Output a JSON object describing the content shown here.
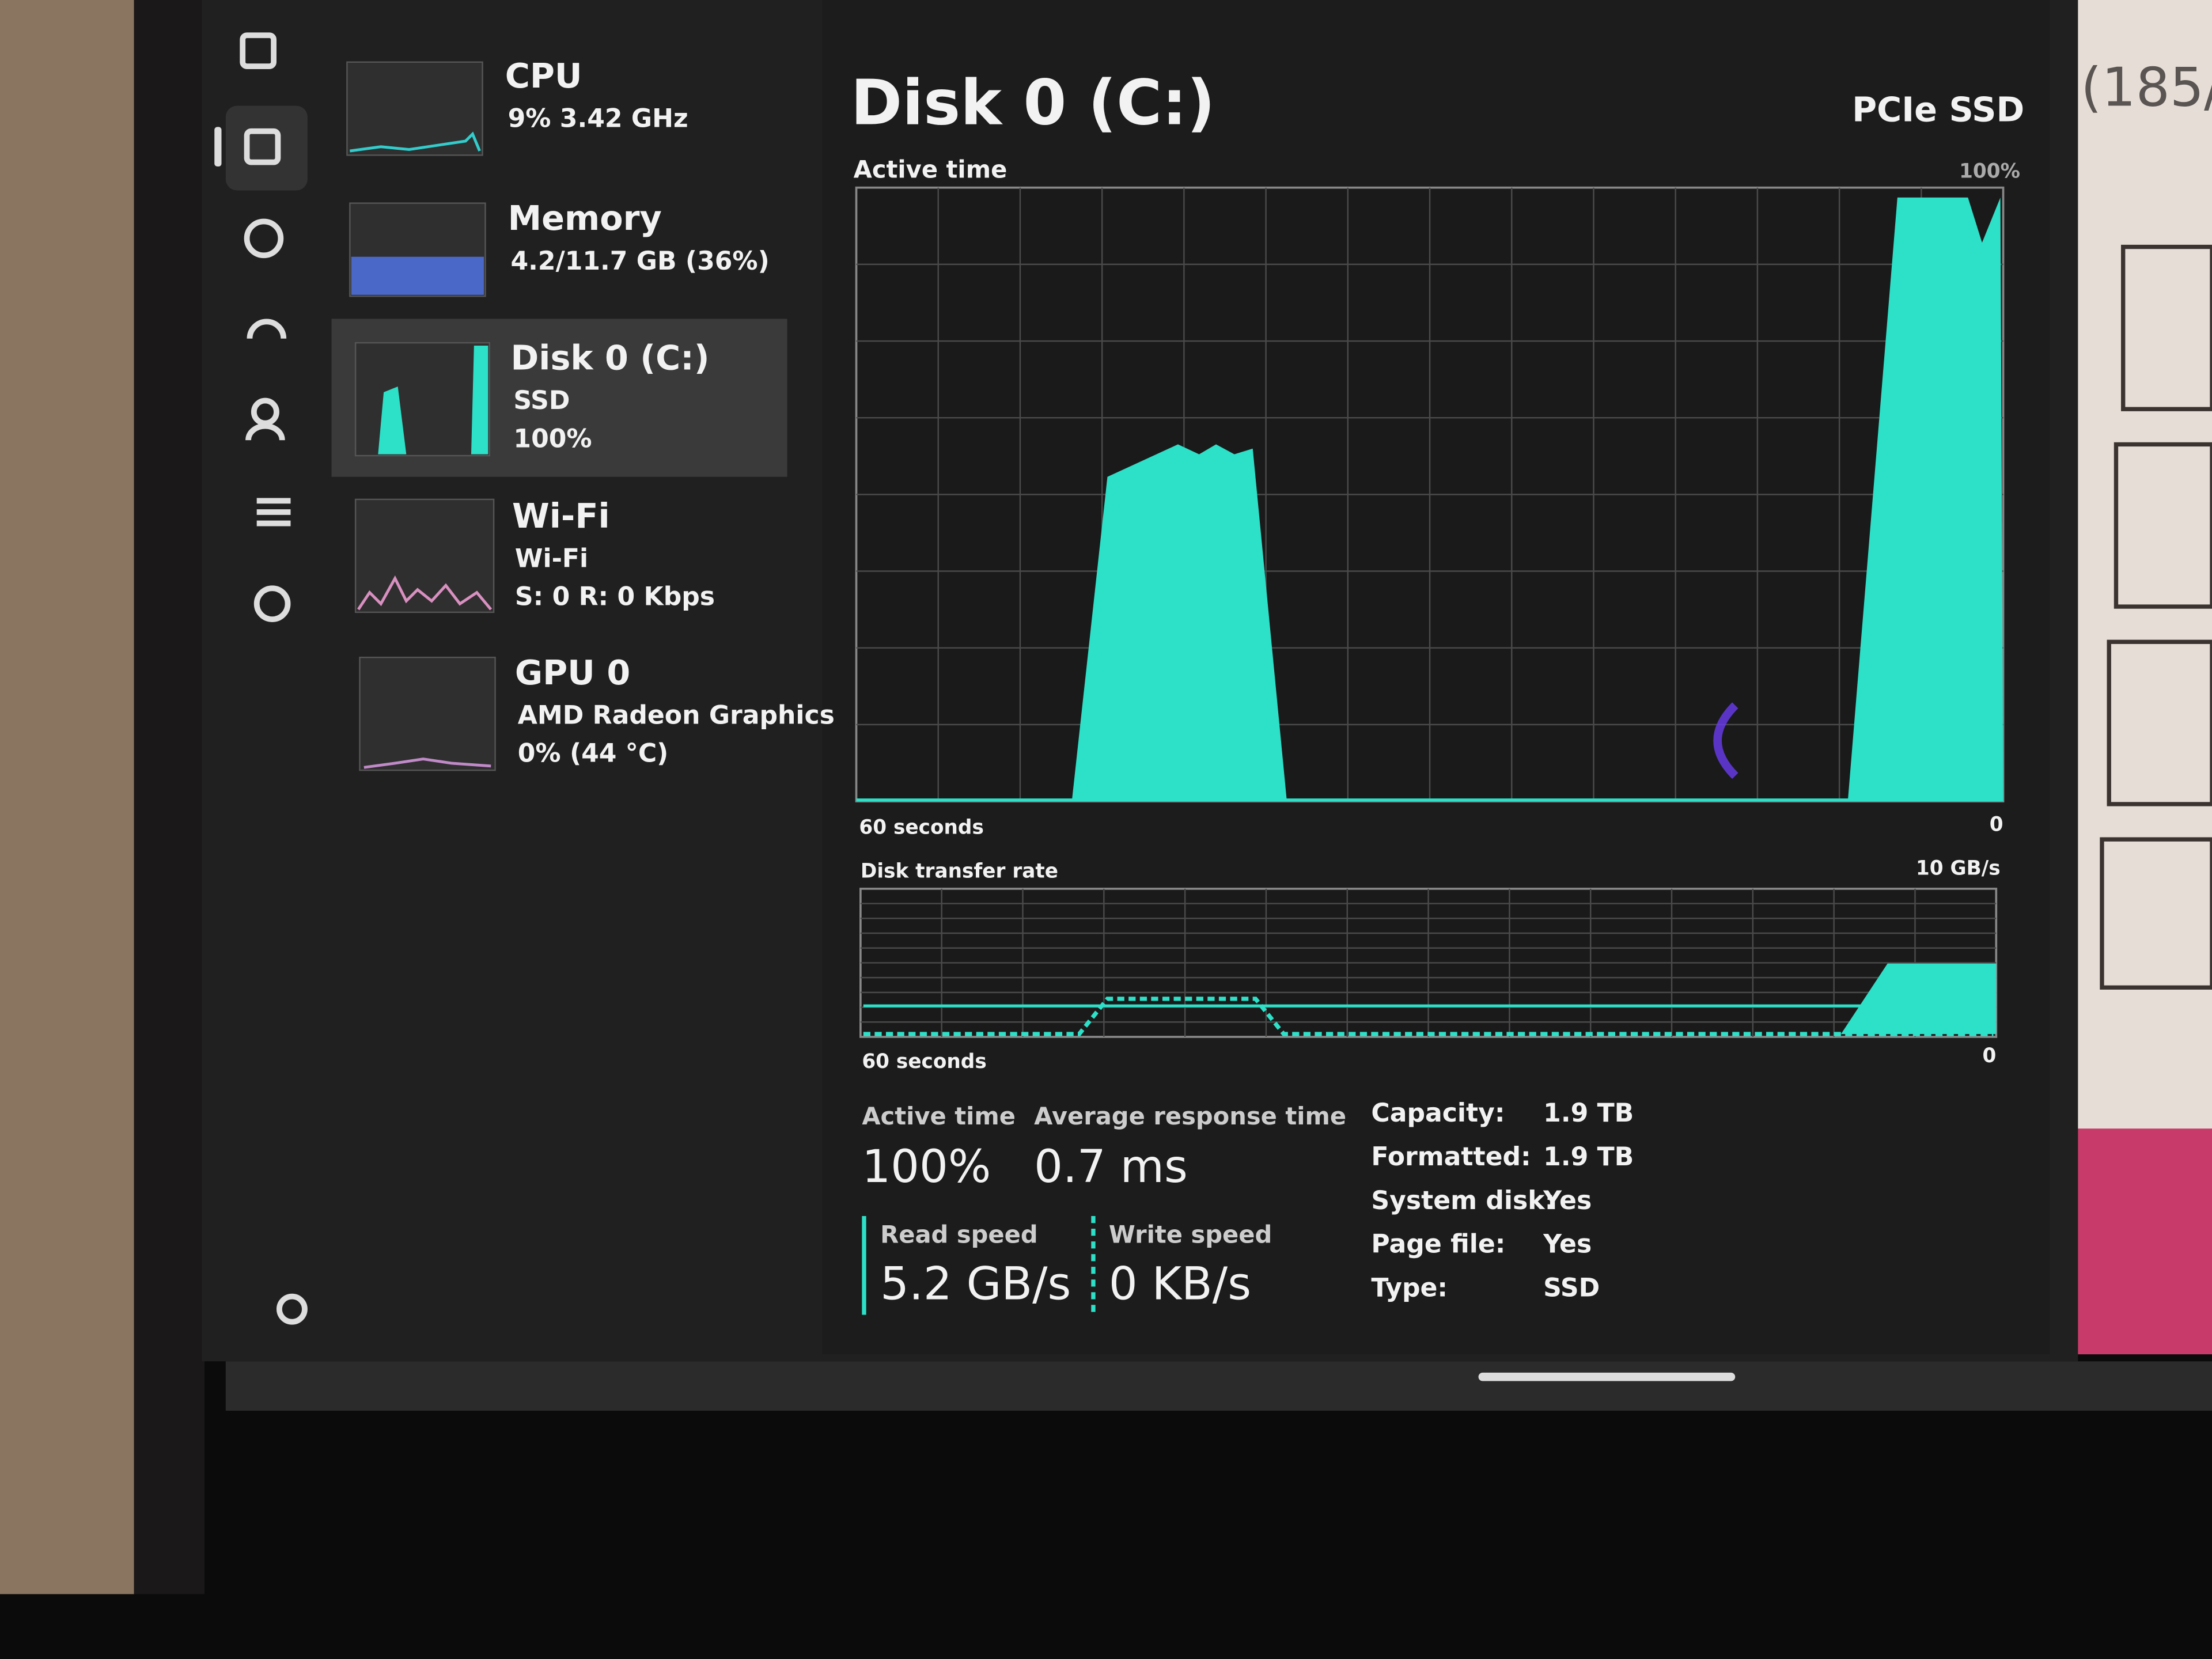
{
  "screen": {
    "bg_text": "(185/"
  },
  "sidebar": {
    "items": [
      {
        "title": "CPU",
        "lines": [
          "9% 3.42 GHz"
        ]
      },
      {
        "title": "Memory",
        "lines": [
          "4.2/11.7 GB (36%)"
        ]
      },
      {
        "title": "Disk 0 (C:)",
        "lines": [
          "SSD",
          "100%"
        ]
      },
      {
        "title": "Wi-Fi",
        "lines": [
          "Wi-Fi",
          "S: 0 R: 0 Kbps"
        ]
      },
      {
        "title": "GPU 0",
        "lines": [
          "AMD Radeon Graphics",
          "0% (44 °C)"
        ]
      }
    ]
  },
  "main": {
    "title": "Disk 0 (C:)",
    "model": "PCIe SSD",
    "active_graph": {
      "label": "Active time",
      "max": "100%",
      "time": "60 seconds",
      "min": "0"
    },
    "transfer_graph": {
      "label": "Disk transfer rate",
      "max": "10 GB/s",
      "time": "60 seconds",
      "min": "0"
    },
    "stats": [
      {
        "label": "Active time",
        "value": "100%"
      },
      {
        "label": "Average response time",
        "value": "0.7 ms"
      },
      {
        "label": "Read speed",
        "value": "5.2 GB/s"
      },
      {
        "label": "Write speed",
        "value": "0 KB/s"
      }
    ],
    "properties": [
      [
        "Capacity:",
        "1.9 TB"
      ],
      [
        "Formatted:",
        "1.9 TB"
      ],
      [
        "System disk:",
        "Yes"
      ],
      [
        "Page file:",
        "Yes"
      ],
      [
        "Type:",
        "SSD"
      ]
    ]
  }
}
